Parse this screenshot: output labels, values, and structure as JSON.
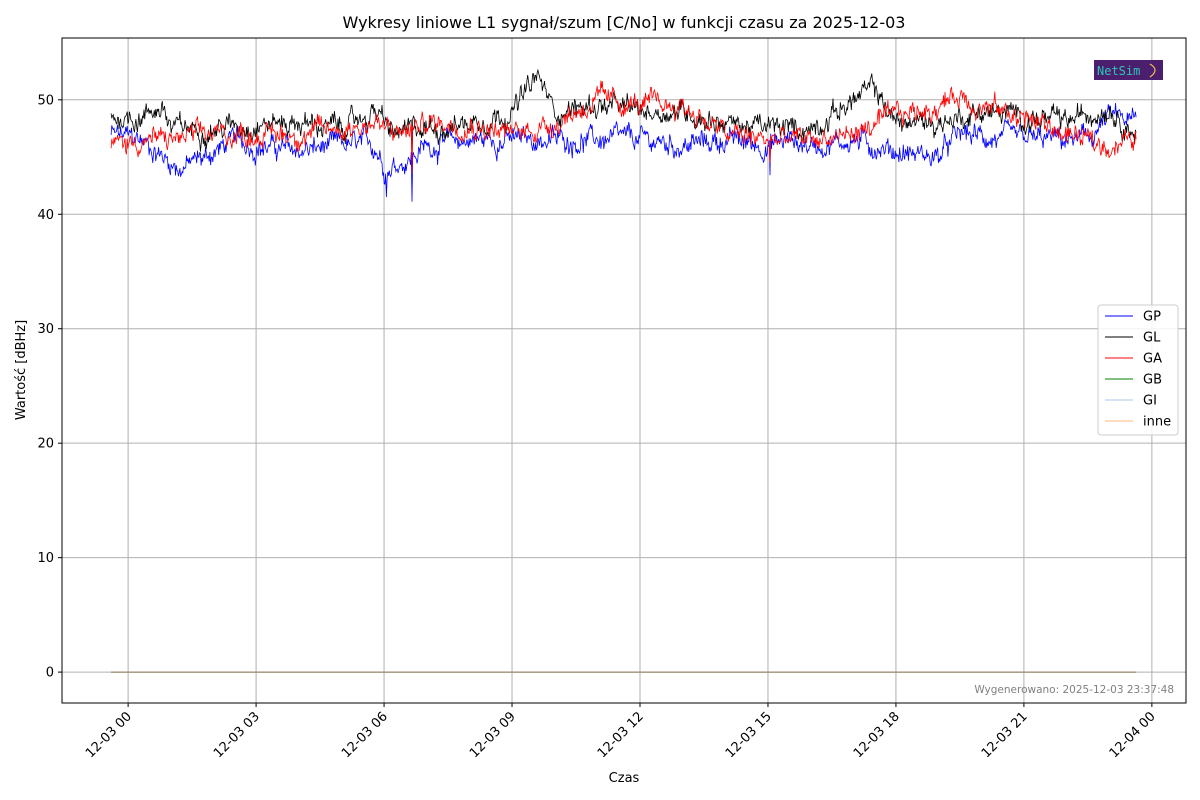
{
  "chart_data": {
    "type": "line",
    "title": "Wykresy liniowe L1 sygnał/szum [C/No] w funkcji czasu za 2025-12-03",
    "xlabel": "Czas",
    "ylabel": "Wartość [dBHz]",
    "x_tick_labels": [
      "12-03 00",
      "12-03 03",
      "12-03 06",
      "12-03 09",
      "12-03 12",
      "12-03 15",
      "12-03 18",
      "12-03 21",
      "12-04 00"
    ],
    "x_ticks_hours": [
      0,
      3,
      6,
      9,
      12,
      15,
      18,
      21,
      24
    ],
    "xlim_hours": [
      -1.55,
      24.8
    ],
    "ylim": [
      -2.7,
      55.4
    ],
    "y_ticks": [
      0,
      10,
      20,
      30,
      40,
      50
    ],
    "grid": true,
    "legend_position": "right",
    "data_x_range_hours": [
      -0.4,
      23.63
    ],
    "series": [
      {
        "name": "GP",
        "color": "#0000ff",
        "x_hours": [
          -0.4,
          0.3,
          1.2,
          1.8,
          2.5,
          3.0,
          4.0,
          5.0,
          5.8,
          6.05,
          6.3,
          6.65,
          7.0,
          8.0,
          9.0,
          10.0,
          11.0,
          12.0,
          13.0,
          14.0,
          15.0,
          15.5,
          16.0,
          17.0,
          18.0,
          19.0,
          19.5,
          20.5,
          21.5,
          22.5,
          23.0,
          23.63
        ],
        "values": [
          47,
          46.5,
          44,
          45,
          46.5,
          46,
          45.5,
          46,
          46,
          44,
          44.5,
          45,
          46,
          46.5,
          46.5,
          46.5,
          46.5,
          46.5,
          46,
          46.5,
          46,
          46.5,
          46,
          46.5,
          45.5,
          45,
          47,
          46.5,
          46.5,
          46.5,
          48.5,
          48
        ],
        "dips": [
          [
            6.05,
            41.5
          ],
          [
            6.65,
            41.1
          ],
          [
            15.05,
            43.4
          ]
        ]
      },
      {
        "name": "GL",
        "color": "#000000",
        "x_hours": [
          -0.4,
          0.3,
          0.8,
          1.0,
          2.0,
          3.0,
          4.0,
          5.0,
          5.8,
          6.2,
          7.0,
          8.0,
          9.0,
          9.6,
          10.0,
          11.0,
          12.0,
          13.0,
          14.0,
          15.0,
          16.0,
          17.0,
          17.5,
          18.0,
          19.0,
          20.0,
          21.0,
          22.0,
          23.0,
          23.63
        ],
        "values": [
          48.5,
          48.5,
          49.5,
          47.5,
          47.5,
          48,
          48,
          47.5,
          49,
          47,
          47.5,
          48,
          49,
          52,
          49,
          49.5,
          49,
          49,
          48,
          47.5,
          47.5,
          50,
          51,
          48,
          48,
          49,
          48.5,
          48,
          49.5,
          47
        ],
        "dips": [
          [
            6.65,
            44.5
          ]
        ]
      },
      {
        "name": "GA",
        "color": "#ff0000",
        "x_hours": [
          -0.4,
          0.3,
          1.0,
          2.0,
          3.0,
          4.0,
          5.0,
          5.8,
          6.2,
          6.7,
          7.0,
          8.0,
          9.0,
          10.0,
          11.0,
          12.0,
          13.0,
          14.0,
          15.0,
          16.0,
          17.0,
          18.0,
          19.0,
          19.5,
          20.0,
          21.0,
          22.0,
          22.8,
          23.63
        ],
        "values": [
          46,
          46.5,
          46.5,
          47,
          47,
          47,
          47.5,
          48,
          47,
          47.5,
          48,
          48,
          47,
          48,
          50,
          49.5,
          49.5,
          47,
          46.5,
          46.5,
          47,
          48.5,
          49.5,
          50.5,
          49.5,
          48.5,
          47,
          46,
          46.5
        ],
        "dips": [
          [
            6.65,
            43.6
          ],
          [
            15.05,
            44.5
          ]
        ]
      },
      {
        "name": "GB",
        "color": "#008000",
        "x_hours": [
          -0.4,
          23.63
        ],
        "values": [
          0,
          0
        ]
      },
      {
        "name": "GI",
        "color": "#aec7e8",
        "x_hours": [
          -0.4,
          23.63
        ],
        "values": [
          0,
          0
        ]
      },
      {
        "name": "inne",
        "color": "#ffbb78",
        "x_hours": [
          -0.4,
          23.63
        ],
        "values": [
          0,
          0
        ]
      }
    ]
  },
  "logo_text": "NetSim",
  "footer_note": "Wygenerowano: 2025-12-03 23:37:48",
  "colors": {
    "grid": "#b0b0b0",
    "axes": "#000000",
    "logo_bg": "#4b1f6e",
    "logo_text": "#2ec4b6",
    "flat_line": "#9c8a6e"
  }
}
